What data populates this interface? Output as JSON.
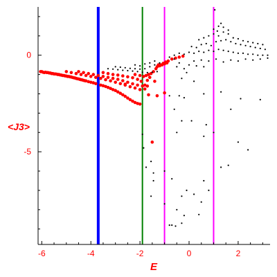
{
  "chart_data": {
    "type": "scatter",
    "xlabel": "E",
    "ylabel": "<J3>",
    "xlim": [
      -6.15,
      3.3
    ],
    "ylim": [
      -9.8,
      2.5
    ],
    "x_ticks": [
      -6,
      -4,
      -2,
      0,
      2
    ],
    "x_tick_labels": [
      "-6",
      "-4",
      "-2",
      "0",
      "2"
    ],
    "y_ticks": [
      0,
      -5
    ],
    "y_tick_labels": [
      "0",
      "-5"
    ],
    "label_color": "#ff0000",
    "axis_color": "#000000",
    "vertical_lines": [
      {
        "x": -3.7,
        "color": "#0000ff",
        "width": "thick"
      },
      {
        "x": -1.9,
        "color": "#008000",
        "width": "medium"
      },
      {
        "x": -1.0,
        "color": "#ff00ff",
        "width": "medium"
      },
      {
        "x": 1.0,
        "color": "#ff00ff",
        "width": "medium"
      }
    ],
    "series": [
      {
        "color": "#ff0000",
        "marker": "large-dot",
        "points": [
          [
            -6.05,
            -0.85
          ],
          [
            -6.0,
            -0.85
          ],
          [
            -5.95,
            -0.88
          ],
          [
            -5.9,
            -0.9
          ],
          [
            -5.85,
            -0.88
          ],
          [
            -5.8,
            -0.9
          ],
          [
            -5.75,
            -0.9
          ],
          [
            -5.7,
            -0.92
          ],
          [
            -5.65,
            -0.92
          ],
          [
            -5.6,
            -0.95
          ],
          [
            -5.55,
            -0.95
          ],
          [
            -5.5,
            -0.97
          ],
          [
            -5.45,
            -0.97
          ],
          [
            -5.4,
            -0.98
          ],
          [
            -5.35,
            -1.0
          ],
          [
            -5.3,
            -1.0
          ],
          [
            -5.25,
            -1.02
          ],
          [
            -5.2,
            -1.03
          ],
          [
            -5.15,
            -1.05
          ],
          [
            -5.1,
            -1.05
          ],
          [
            -5.05,
            -1.07
          ],
          [
            -5.0,
            -1.08
          ],
          [
            -4.95,
            -1.1
          ],
          [
            -4.9,
            -1.1
          ],
          [
            -4.85,
            -1.12
          ],
          [
            -4.8,
            -1.13
          ],
          [
            -4.75,
            -1.15
          ],
          [
            -4.7,
            -1.17
          ],
          [
            -4.65,
            -1.18
          ],
          [
            -4.6,
            -1.2
          ],
          [
            -4.55,
            -1.22
          ],
          [
            -4.5,
            -1.23
          ],
          [
            -4.45,
            -1.25
          ],
          [
            -4.4,
            -1.27
          ],
          [
            -4.35,
            -1.28
          ],
          [
            -4.3,
            -1.3
          ],
          [
            -4.25,
            -1.32
          ],
          [
            -4.2,
            -1.33
          ],
          [
            -4.1,
            -1.37
          ],
          [
            -4.0,
            -1.4
          ],
          [
            -3.9,
            -1.43
          ],
          [
            -3.8,
            -1.47
          ],
          [
            -3.6,
            -1.55
          ],
          [
            -3.5,
            -1.58
          ],
          [
            -3.4,
            -1.62
          ],
          [
            -3.3,
            -1.67
          ],
          [
            -3.2,
            -1.72
          ],
          [
            -3.1,
            -1.78
          ],
          [
            -3.0,
            -1.83
          ],
          [
            -2.9,
            -1.9
          ],
          [
            -2.8,
            -1.97
          ],
          [
            -2.7,
            -2.05
          ],
          [
            -2.6,
            -2.13
          ],
          [
            -2.5,
            -2.22
          ],
          [
            -2.4,
            -2.3
          ],
          [
            -2.3,
            -2.38
          ],
          [
            -2.2,
            -2.45
          ],
          [
            -2.1,
            -2.5
          ],
          [
            -2.0,
            -2.53
          ],
          [
            -5.0,
            -0.85
          ],
          [
            -4.8,
            -0.9
          ],
          [
            -4.6,
            -0.95
          ],
          [
            -4.4,
            -1.0
          ],
          [
            -4.2,
            -1.05
          ],
          [
            -4.0,
            -1.1
          ],
          [
            -3.8,
            -1.15
          ],
          [
            -3.6,
            -1.2
          ],
          [
            -3.4,
            -1.27
          ],
          [
            -3.2,
            -1.33
          ],
          [
            -3.0,
            -1.4
          ],
          [
            -2.8,
            -1.47
          ],
          [
            -2.6,
            -1.55
          ],
          [
            -2.4,
            -1.63
          ],
          [
            -2.2,
            -1.7
          ],
          [
            -2.0,
            -1.78
          ],
          [
            -1.8,
            -1.75
          ],
          [
            -1.7,
            -1.6
          ],
          [
            -4.5,
            -0.85
          ],
          [
            -4.3,
            -0.9
          ],
          [
            -4.1,
            -0.95
          ],
          [
            -3.9,
            -1.0
          ],
          [
            -3.7,
            -1.05
          ],
          [
            -3.5,
            -1.1
          ],
          [
            -3.3,
            -1.15
          ],
          [
            -3.1,
            -1.2
          ],
          [
            -2.9,
            -1.25
          ],
          [
            -2.7,
            -1.32
          ],
          [
            -2.5,
            -1.4
          ],
          [
            -2.3,
            -1.48
          ],
          [
            -2.1,
            -1.55
          ],
          [
            -1.9,
            -1.6
          ],
          [
            -3.5,
            -0.9
          ],
          [
            -3.3,
            -0.95
          ],
          [
            -3.1,
            -1.0
          ],
          [
            -2.9,
            -1.03
          ],
          [
            -2.7,
            -1.07
          ],
          [
            -2.5,
            -1.12
          ],
          [
            -2.3,
            -1.17
          ],
          [
            -2.1,
            -1.25
          ],
          [
            -1.95,
            -1.35
          ],
          [
            -2.2,
            -1.0
          ],
          [
            -2.0,
            -1.05
          ],
          [
            -1.85,
            -1.1
          ],
          [
            -1.75,
            -1.05
          ],
          [
            -1.65,
            -1.0
          ],
          [
            -1.55,
            -0.95
          ],
          [
            -1.45,
            -0.85
          ],
          [
            -1.35,
            -0.7
          ],
          [
            -1.25,
            -0.5
          ],
          [
            -1.15,
            -0.5
          ],
          [
            -1.05,
            -0.42
          ],
          [
            -0.95,
            -0.35
          ],
          [
            -0.85,
            -0.3
          ],
          [
            -0.7,
            -0.2
          ],
          [
            -0.55,
            -0.15
          ],
          [
            -0.4,
            -0.1
          ],
          [
            -0.25,
            -0.05
          ],
          [
            -1.3,
            -0.6
          ],
          [
            -1.2,
            -0.55
          ],
          [
            -1.1,
            -0.5
          ],
          [
            -1.0,
            -0.45
          ],
          [
            -0.9,
            -0.4
          ],
          [
            -1.6,
            -1.15
          ],
          [
            -1.7,
            -1.3
          ],
          [
            -1.8,
            -1.55
          ],
          [
            -1.65,
            -2.05
          ],
          [
            -1.3,
            -2.1
          ],
          [
            -1.0,
            -1.95
          ],
          [
            -1.4,
            -1.35
          ],
          [
            -1.5,
            -4.5
          ],
          [
            -2.6,
            -1.5
          ]
        ]
      },
      {
        "color": "#000000",
        "marker": "small-dot",
        "points": [
          [
            -3.3,
            -0.7
          ],
          [
            -3.1,
            -0.72
          ],
          [
            -2.9,
            -0.75
          ],
          [
            -2.7,
            -0.78
          ],
          [
            -2.5,
            -0.8
          ],
          [
            -2.3,
            -0.82
          ],
          [
            -2.1,
            -0.85
          ],
          [
            -1.9,
            -0.88
          ],
          [
            -1.7,
            -0.9
          ],
          [
            -1.5,
            -0.88
          ],
          [
            -1.3,
            -0.85
          ],
          [
            -3.0,
            -0.6
          ],
          [
            -2.8,
            -0.62
          ],
          [
            -2.6,
            -0.65
          ],
          [
            -2.4,
            -0.68
          ],
          [
            -2.2,
            -0.7
          ],
          [
            -2.0,
            -0.72
          ],
          [
            -1.8,
            -0.7
          ],
          [
            -1.6,
            -0.6
          ],
          [
            -1.4,
            -0.5
          ],
          [
            -1.2,
            -0.4
          ],
          [
            -2.2,
            -0.5
          ],
          [
            -2.0,
            -0.55
          ],
          [
            -1.8,
            -0.45
          ],
          [
            -1.6,
            -0.4
          ],
          [
            -1.4,
            -0.3
          ],
          [
            -0.8,
            -0.1
          ],
          [
            -0.6,
            -0.2
          ],
          [
            -0.4,
            -0.4
          ],
          [
            -0.2,
            -0.7
          ],
          [
            -0.1,
            -0.9
          ],
          [
            -0.5,
            -0.6
          ],
          [
            -0.6,
            0.0
          ],
          [
            -0.4,
            0.1
          ],
          [
            -0.2,
            0.05
          ],
          [
            0.0,
            0.15
          ],
          [
            0.2,
            0.1
          ],
          [
            0.4,
            0.2
          ],
          [
            0.6,
            0.15
          ],
          [
            0.8,
            0.25
          ],
          [
            1.0,
            0.2
          ],
          [
            1.2,
            0.3
          ],
          [
            1.4,
            0.25
          ],
          [
            1.6,
            0.2
          ],
          [
            1.8,
            0.15
          ],
          [
            2.0,
            0.1
          ],
          [
            2.2,
            0.1
          ],
          [
            2.4,
            0.05
          ],
          [
            2.6,
            0.05
          ],
          [
            2.8,
            0.0
          ],
          [
            3.0,
            0.0
          ],
          [
            3.2,
            0.0
          ],
          [
            0.1,
            0.45
          ],
          [
            0.3,
            0.4
          ],
          [
            0.5,
            0.55
          ],
          [
            0.7,
            0.6
          ],
          [
            0.9,
            0.5
          ],
          [
            1.1,
            0.7
          ],
          [
            1.3,
            0.75
          ],
          [
            1.5,
            0.8
          ],
          [
            1.7,
            0.7
          ],
          [
            1.9,
            0.6
          ],
          [
            2.1,
            0.55
          ],
          [
            2.3,
            0.5
          ],
          [
            2.5,
            0.45
          ],
          [
            2.7,
            0.4
          ],
          [
            2.9,
            0.35
          ],
          [
            3.1,
            0.3
          ],
          [
            0.4,
            0.8
          ],
          [
            0.6,
            0.9
          ],
          [
            0.8,
            1.0
          ],
          [
            1.0,
            1.1
          ],
          [
            1.2,
            1.0
          ],
          [
            1.4,
            1.2
          ],
          [
            1.6,
            1.1
          ],
          [
            1.8,
            0.9
          ],
          [
            2.0,
            0.85
          ],
          [
            2.2,
            0.75
          ],
          [
            2.4,
            0.7
          ],
          [
            2.6,
            0.65
          ],
          [
            2.8,
            0.6
          ],
          [
            3.0,
            0.55
          ],
          [
            1.0,
            1.35
          ],
          [
            1.2,
            1.5
          ],
          [
            1.4,
            1.45
          ],
          [
            1.6,
            1.3
          ],
          [
            1.3,
            1.65
          ],
          [
            1.15,
            1.25
          ],
          [
            1.05,
            2.35
          ],
          [
            0.2,
            -0.3
          ],
          [
            0.5,
            -0.25
          ],
          [
            0.8,
            -0.3
          ],
          [
            1.1,
            -0.2
          ],
          [
            1.4,
            -0.35
          ],
          [
            1.7,
            -0.25
          ],
          [
            2.0,
            -0.3
          ],
          [
            2.3,
            -0.2
          ],
          [
            2.6,
            -0.25
          ],
          [
            2.9,
            -0.2
          ],
          [
            3.2,
            -0.15
          ],
          [
            0.0,
            -0.5
          ],
          [
            0.3,
            -0.55
          ],
          [
            0.6,
            -0.6
          ],
          [
            -0.3,
            -1.2
          ],
          [
            0.2,
            -1.35
          ],
          [
            -0.8,
            -2.1
          ],
          [
            -0.4,
            -2.1
          ],
          [
            -0.2,
            -2.2
          ],
          [
            0.6,
            -2.0
          ],
          [
            1.3,
            -1.9
          ],
          [
            2.1,
            -2.25
          ],
          [
            2.9,
            -2.3
          ],
          [
            1.7,
            -2.8
          ],
          [
            -0.6,
            -2.8
          ],
          [
            -0.3,
            -3.4
          ],
          [
            0.1,
            -3.4
          ],
          [
            0.7,
            -3.6
          ],
          [
            1.0,
            -4.0
          ],
          [
            2.0,
            -4.5
          ],
          [
            2.4,
            -4.9
          ],
          [
            0.6,
            -4.2
          ],
          [
            -0.5,
            -4.0
          ],
          [
            -1.9,
            -4.1
          ],
          [
            -1.75,
            -5.8
          ],
          [
            -1.85,
            -4.8
          ],
          [
            -1.0,
            -6.0
          ],
          [
            -0.3,
            -7.3
          ],
          [
            -0.1,
            -7.0
          ],
          [
            0.6,
            -6.5
          ],
          [
            0.8,
            -7.0
          ],
          [
            1.3,
            -5.8
          ],
          [
            1.6,
            -5.7
          ],
          [
            0.5,
            -7.6
          ],
          [
            0.2,
            -7.2
          ],
          [
            -0.7,
            -6.4
          ],
          [
            -1.45,
            -6.5
          ],
          [
            -1.0,
            -7.7
          ],
          [
            -0.5,
            -8.0
          ],
          [
            -1.55,
            -7.3
          ],
          [
            -0.2,
            -8.3
          ],
          [
            0.4,
            -8.25
          ],
          [
            -0.8,
            -8.8
          ],
          [
            -0.7,
            -8.8
          ],
          [
            -0.55,
            -8.85
          ],
          [
            -0.3,
            -8.7
          ],
          [
            -1.45,
            -6.1
          ],
          [
            -1.55,
            -5.5
          ]
        ]
      }
    ]
  }
}
